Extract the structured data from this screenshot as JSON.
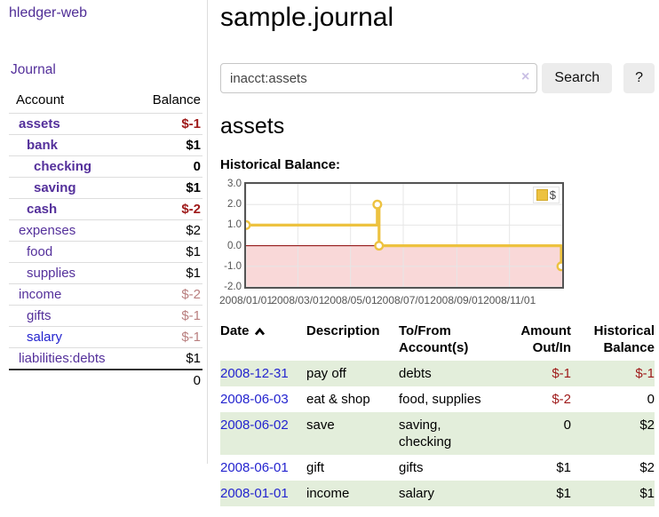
{
  "colors": {
    "link_purple": "#54309b",
    "link_blue": "#2424cf",
    "negative_strong": "#9e1919",
    "negative_muted": "#b97f7f",
    "row_stripe_green": "#e3eedb",
    "chart_line": "#edc240",
    "chart_negative_fill": "#f9d8d8",
    "chart_zero_line": "#8b0000",
    "chart_grid": "#e6e6e6",
    "chart_border": "#545454",
    "axis_text": "#545454"
  },
  "sidebar": {
    "brand": "hledger-web",
    "journal_link": "Journal",
    "accounts": {
      "headers": {
        "account": "Account",
        "balance": "Balance"
      },
      "rows": [
        {
          "name": "assets",
          "depth": 1,
          "balance": "$-1",
          "bold": true
        },
        {
          "name": "bank",
          "depth": 2,
          "balance": "$1",
          "bold": true
        },
        {
          "name": "checking",
          "depth": 3,
          "balance": "0",
          "bold": true
        },
        {
          "name": "saving",
          "depth": 3,
          "balance": "$1",
          "bold": true
        },
        {
          "name": "cash",
          "depth": 2,
          "balance": "$-2",
          "bold": true
        },
        {
          "name": "expenses",
          "depth": 1,
          "balance": "$2"
        },
        {
          "name": "food",
          "depth": 2,
          "balance": "$1"
        },
        {
          "name": "supplies",
          "depth": 2,
          "balance": "$1"
        },
        {
          "name": "income",
          "depth": 1,
          "balance": "$-2"
        },
        {
          "name": "gifts",
          "depth": 2,
          "balance": "$-1"
        },
        {
          "name": "salary",
          "depth": 2,
          "balance": "$-1",
          "link_color": "blue"
        },
        {
          "name": "liabilities:debts",
          "depth": 1,
          "balance": "$1"
        }
      ],
      "total": "0"
    }
  },
  "main": {
    "title": "sample.journal",
    "search": {
      "query": "inacct:assets",
      "clear_label": "×",
      "search_button": "Search",
      "help_button": "?"
    },
    "account_heading": "assets",
    "section_label": "Historical Balance:",
    "register": {
      "headers": {
        "date": "Date",
        "description": "Description",
        "tofrom1": "To/From",
        "tofrom2": "Account(s)",
        "amount1": "Amount",
        "amount2": "Out/In",
        "hist1": "Historical",
        "hist2": "Balance"
      },
      "rows": [
        {
          "date": "2008-12-31",
          "description": "pay off",
          "accounts": "debts",
          "amount": "$-1",
          "balance": "$-1"
        },
        {
          "date": "2008-06-03",
          "description": "eat & shop",
          "accounts": "food, supplies",
          "amount": "$-2",
          "balance": "0"
        },
        {
          "date": "2008-06-02",
          "description": "save",
          "accounts": "saving, checking",
          "amount": "0",
          "balance": "$2"
        },
        {
          "date": "2008-06-01",
          "description": "gift",
          "accounts": "gifts",
          "amount": "$1",
          "balance": "$2"
        },
        {
          "date": "2008-01-01",
          "description": "income",
          "accounts": "salary",
          "amount": "$1",
          "balance": "$1"
        }
      ]
    }
  },
  "chart_data": {
    "type": "line",
    "title": "Historical Balance",
    "style": "step-after-with-markers",
    "x_range": [
      "2008-01-01",
      "2009-01-01"
    ],
    "ylim": [
      -2,
      3
    ],
    "y_ticks": [
      "3.0",
      "2.0",
      "1.0",
      "0.0",
      "-1.0",
      "-2.0"
    ],
    "x_ticks": [
      {
        "label": "2008/01/01",
        "date": "2008-01-01"
      },
      {
        "label": "2008/03/01",
        "date": "2008-03-01"
      },
      {
        "label": "2008/05/01",
        "date": "2008-05-01"
      },
      {
        "label": "2008/07/01",
        "date": "2008-07-01"
      },
      {
        "label": "2008/09/01",
        "date": "2008-09-01"
      },
      {
        "label": "2008/11/01",
        "date": "2008-11-01"
      }
    ],
    "series": [
      {
        "name": "$",
        "points": [
          {
            "date": "2008-01-01",
            "value": 1
          },
          {
            "date": "2008-06-01",
            "value": 2
          },
          {
            "date": "2008-06-03",
            "value": 0
          },
          {
            "date": "2008-12-31",
            "value": -1
          }
        ]
      }
    ],
    "negative_region_shaded": true,
    "legend_position": "top-right",
    "grid": true
  }
}
